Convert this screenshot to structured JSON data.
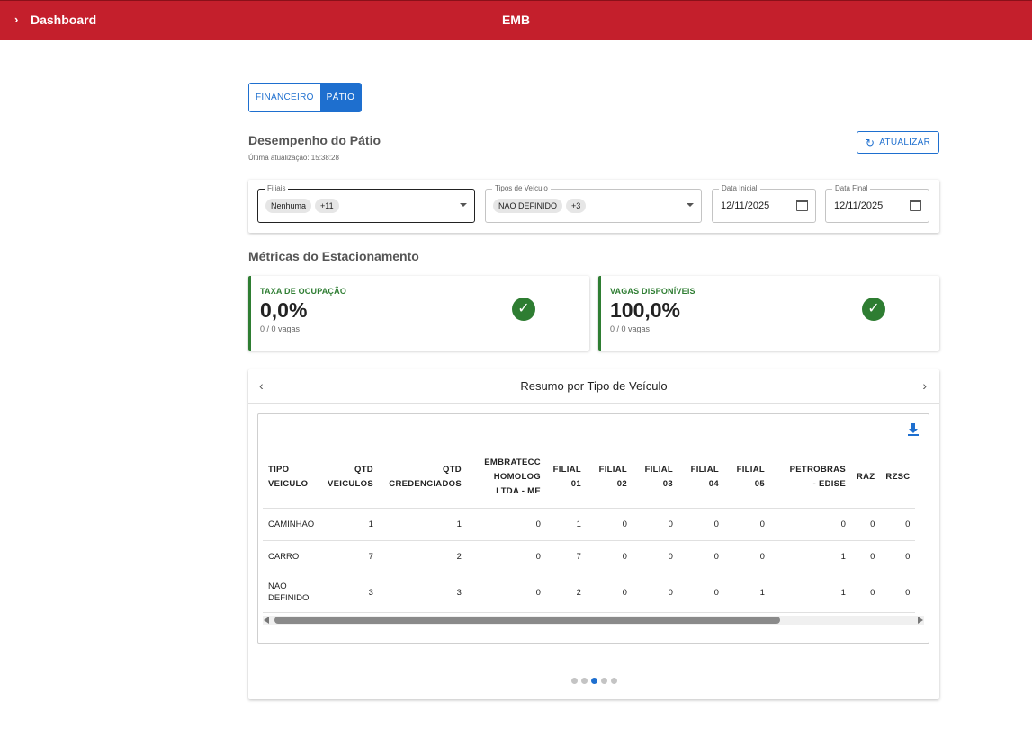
{
  "topbar": {
    "chevron": "›",
    "title": "Dashboard",
    "brand": "EMB"
  },
  "tabs": [
    {
      "label": "FINANCEIRO",
      "active": false
    },
    {
      "label": "PÁTIO",
      "active": true
    }
  ],
  "section": {
    "title": "Desempenho do Pátio",
    "updated": "Última atualização: 15:38:28",
    "refresh_label": "ATUALIZAR",
    "refresh_icon": "refresh-icon"
  },
  "filters": {
    "filiais": {
      "label": "Filiais",
      "chips": [
        "Nenhuma",
        "+11"
      ]
    },
    "tipos": {
      "label": "Tipos de Veículo",
      "chips": [
        "NAO DEFINIDO",
        "+3"
      ]
    },
    "data_inicial": {
      "label": "Data Inicial",
      "value": "12/11/2025"
    },
    "data_final": {
      "label": "Data Final",
      "value": "12/11/2025"
    }
  },
  "metrics": {
    "title": "Métricas do Estacionamento",
    "cards": [
      {
        "title": "TAXA DE OCUPAÇÃO",
        "value": "0,0%",
        "sub": "0 / 0 vagas",
        "icon": "check-circle-icon"
      },
      {
        "title": "VAGAS DISPONÍVEIS",
        "value": "100,0%",
        "sub": "0 / 0 vagas",
        "icon": "check-circle-icon"
      }
    ]
  },
  "carousel": {
    "title": "Resumo por Tipo de Veículo",
    "prev": "‹",
    "next": "›",
    "download_icon": "download-icon",
    "headers": [
      [
        "TIPO",
        "VEICULO"
      ],
      [
        "QTD",
        "VEICULOS"
      ],
      [
        "QTD",
        "CREDENCIADOS"
      ],
      [
        "EMBRATECC",
        "HOMOLOG",
        "LTDA - ME"
      ],
      [
        "FILIAL",
        "01"
      ],
      [
        "FILIAL",
        "02"
      ],
      [
        "FILIAL",
        "03"
      ],
      [
        "FILIAL",
        "04"
      ],
      [
        "FILIAL",
        "05"
      ],
      [
        "PETROBRAS",
        "- EDISE"
      ],
      [
        "RAZ"
      ],
      [
        "RZSC"
      ]
    ],
    "rows": [
      {
        "tipo": [
          "CAMINHÃO"
        ],
        "cells": [
          "1",
          "1",
          "0",
          "1",
          "0",
          "0",
          "0",
          "0",
          "0",
          "0",
          "0"
        ]
      },
      {
        "tipo": [
          "CARRO"
        ],
        "cells": [
          "7",
          "2",
          "0",
          "7",
          "0",
          "0",
          "0",
          "0",
          "1",
          "0",
          "0"
        ]
      },
      {
        "tipo": [
          "NAO",
          "DEFINIDO"
        ],
        "cells": [
          "3",
          "3",
          "0",
          "2",
          "0",
          "0",
          "0",
          "1",
          "1",
          "0",
          "0"
        ]
      }
    ],
    "pages": 5,
    "active_page": 3
  }
}
